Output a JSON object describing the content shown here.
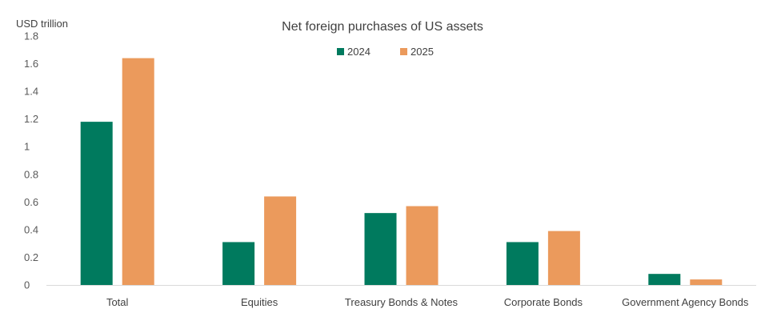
{
  "chart_data": {
    "type": "bar",
    "title": "Net foreign purchases of US assets",
    "unit_label": "USD trillion",
    "categories": [
      "Total",
      "Equities",
      "Treasury Bonds & Notes",
      "Corporate Bonds",
      "Government Agency Bonds"
    ],
    "series": [
      {
        "name": "2024",
        "color": "#007a5e",
        "values": [
          1.18,
          0.31,
          0.52,
          0.31,
          0.08
        ]
      },
      {
        "name": "2025",
        "color": "#eb9a5c",
        "values": [
          1.64,
          0.64,
          0.57,
          0.39,
          0.04
        ]
      }
    ],
    "yticks": [
      "0",
      "0.2",
      "0.4",
      "0.6",
      "0.8",
      "1",
      "1.2",
      "1.4",
      "1.6",
      "1.8"
    ],
    "ylim": [
      0,
      1.8
    ],
    "grid": false,
    "legend_position": "top-center"
  }
}
